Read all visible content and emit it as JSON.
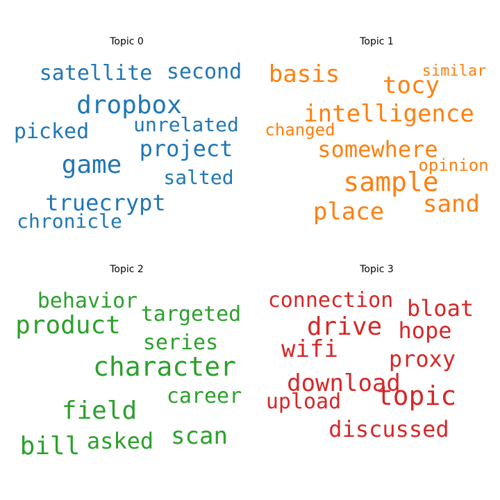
{
  "chart_data": [
    {
      "type": "wordcloud",
      "title": "Topic 0",
      "color": "#1f77b4",
      "words": [
        "dropbox",
        "game",
        "project",
        "truecrypt",
        "satellite",
        "second",
        "unrelated",
        "picked",
        "salted",
        "chronicle"
      ]
    },
    {
      "type": "wordcloud",
      "title": "Topic 1",
      "color": "#ff7f0e",
      "words": [
        "intelligence",
        "sample",
        "somewhere",
        "basis",
        "tocy",
        "place",
        "sand",
        "opinion",
        "changed",
        "similar"
      ]
    },
    {
      "type": "wordcloud",
      "title": "Topic 2",
      "color": "#2ca02c",
      "words": [
        "character",
        "product",
        "field",
        "behavior",
        "targeted",
        "series",
        "career",
        "bill",
        "asked",
        "scan"
      ]
    },
    {
      "type": "wordcloud",
      "title": "Topic 3",
      "color": "#d62728",
      "words": [
        "topic",
        "drive",
        "download",
        "discussed",
        "connection",
        "bloat",
        "hope",
        "wifi",
        "proxy",
        "upload"
      ]
    }
  ]
}
